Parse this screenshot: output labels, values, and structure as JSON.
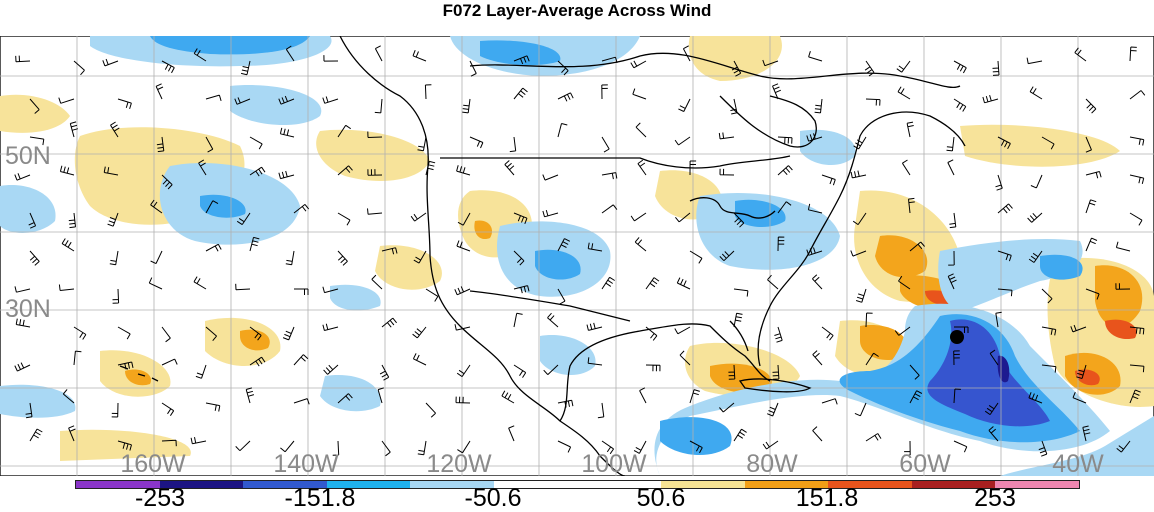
{
  "title": "F072 Layer-Average Across Wind",
  "map": {
    "lat_labels": [
      "50N",
      "30N"
    ],
    "lon_labels": [
      "160W",
      "140W",
      "120W",
      "100W",
      "80W",
      "60W",
      "40W"
    ],
    "label_color": "#8a8a8a",
    "marker_color": "#000000",
    "colors": {
      "pos_light": "#f7e39a",
      "pos_med": "#f3a51c",
      "pos_strong": "#e8541c",
      "neg_light": "#a9d8f4",
      "neg_med": "#3fa9f0",
      "neg_strong": "#3655cf",
      "neg_deep": "#1d1a8f"
    }
  },
  "colorbar": {
    "labels": [
      "-253",
      "-151.8",
      "-50.6",
      "50.6",
      "151.8",
      "253"
    ],
    "colors": [
      "#8a35c9",
      "#1c1483",
      "#3159cf",
      "#1fb2ee",
      "#a7d7f3",
      "#ffffff",
      "#ffffff",
      "#f6e394",
      "#f29f17",
      "#e8541c",
      "#a82020",
      "#ee86b0"
    ]
  }
}
